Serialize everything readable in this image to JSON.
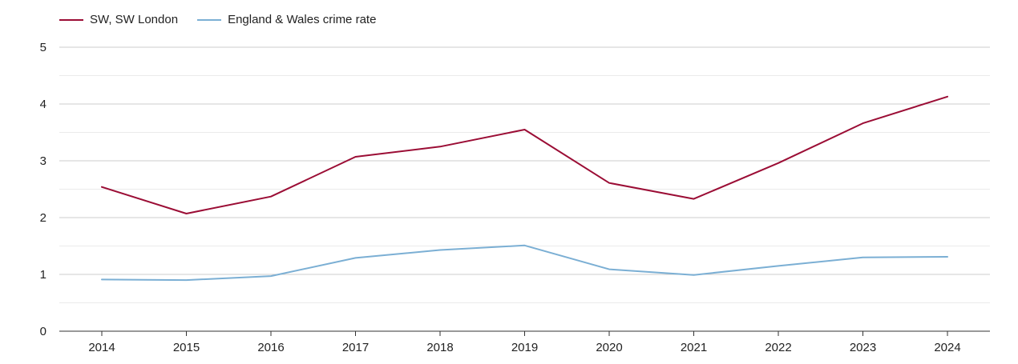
{
  "chart_data": {
    "type": "line",
    "categories": [
      "2014",
      "2015",
      "2016",
      "2017",
      "2018",
      "2019",
      "2020",
      "2021",
      "2022",
      "2023",
      "2024"
    ],
    "series": [
      {
        "name": "SW, SW London",
        "color": "#9b0d35",
        "values": [
          2.54,
          2.07,
          2.37,
          3.07,
          3.25,
          3.55,
          2.61,
          2.33,
          2.96,
          3.66,
          4.13
        ]
      },
      {
        "name": "England & Wales crime rate",
        "color": "#7bafd4",
        "values": [
          0.91,
          0.9,
          0.97,
          1.29,
          1.43,
          1.51,
          1.09,
          0.99,
          1.15,
          1.3,
          1.31
        ]
      }
    ],
    "yticks": [
      "0",
      "1",
      "2",
      "3",
      "4",
      "5"
    ],
    "ylim": [
      0,
      5
    ],
    "title": "",
    "xlabel": "",
    "ylabel": "",
    "grid": true,
    "legend_position": "top-left"
  }
}
